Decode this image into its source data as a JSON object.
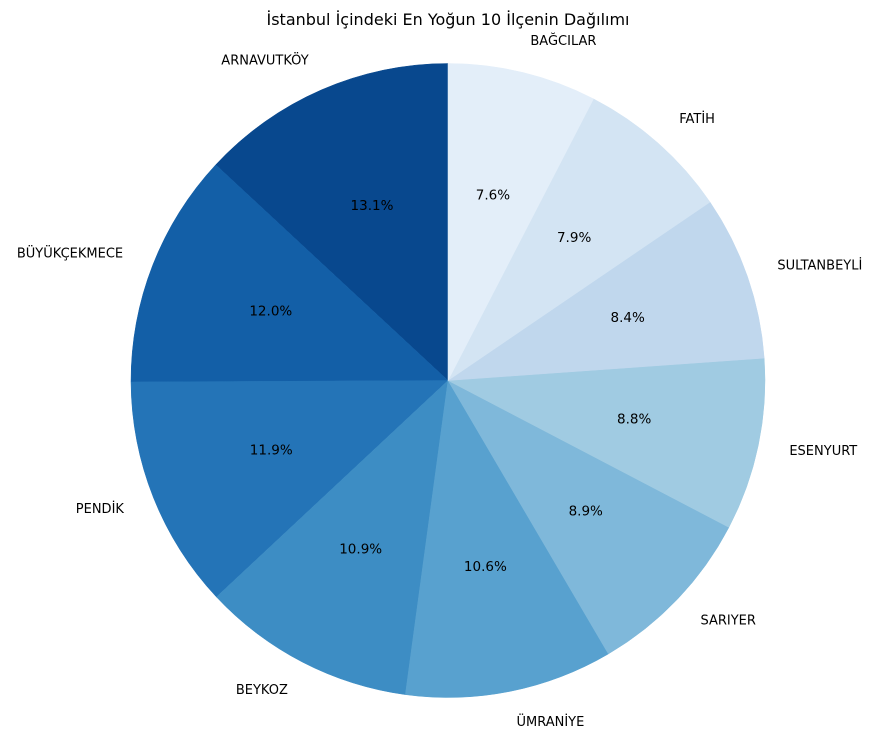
{
  "chart_data": {
    "type": "pie",
    "title": "İstanbul İçindeki En Yoğun 10 İlçenin Dağılımı",
    "categories": [
      "ARNAVUTKÖY",
      "BÜYÜKÇEKMECE",
      "PENDİK",
      "BEYKOZ",
      "ÜMRANİYE",
      "SARIYER",
      "ESENYURT",
      "SULTANBEYLİ",
      "FATİH",
      "BAĞCILAR"
    ],
    "values": [
      13.1,
      12.0,
      11.9,
      10.9,
      10.6,
      8.9,
      8.8,
      8.4,
      7.9,
      7.6
    ],
    "value_labels": [
      "13.1%",
      "12.0%",
      "11.9%",
      "10.9%",
      "10.6%",
      "8.9%",
      "8.8%",
      "8.4%",
      "7.9%",
      "7.6%"
    ],
    "colors": [
      "#08488e",
      "#135fa7",
      "#2474b7",
      "#3d8dc4",
      "#58a1cf",
      "#7fb8da",
      "#a0cbe2",
      "#c0d7ed",
      "#d3e4f3",
      "#e3eef9"
    ],
    "start": "12 o'clock",
    "direction": "counterclockwise",
    "legend": "none"
  }
}
